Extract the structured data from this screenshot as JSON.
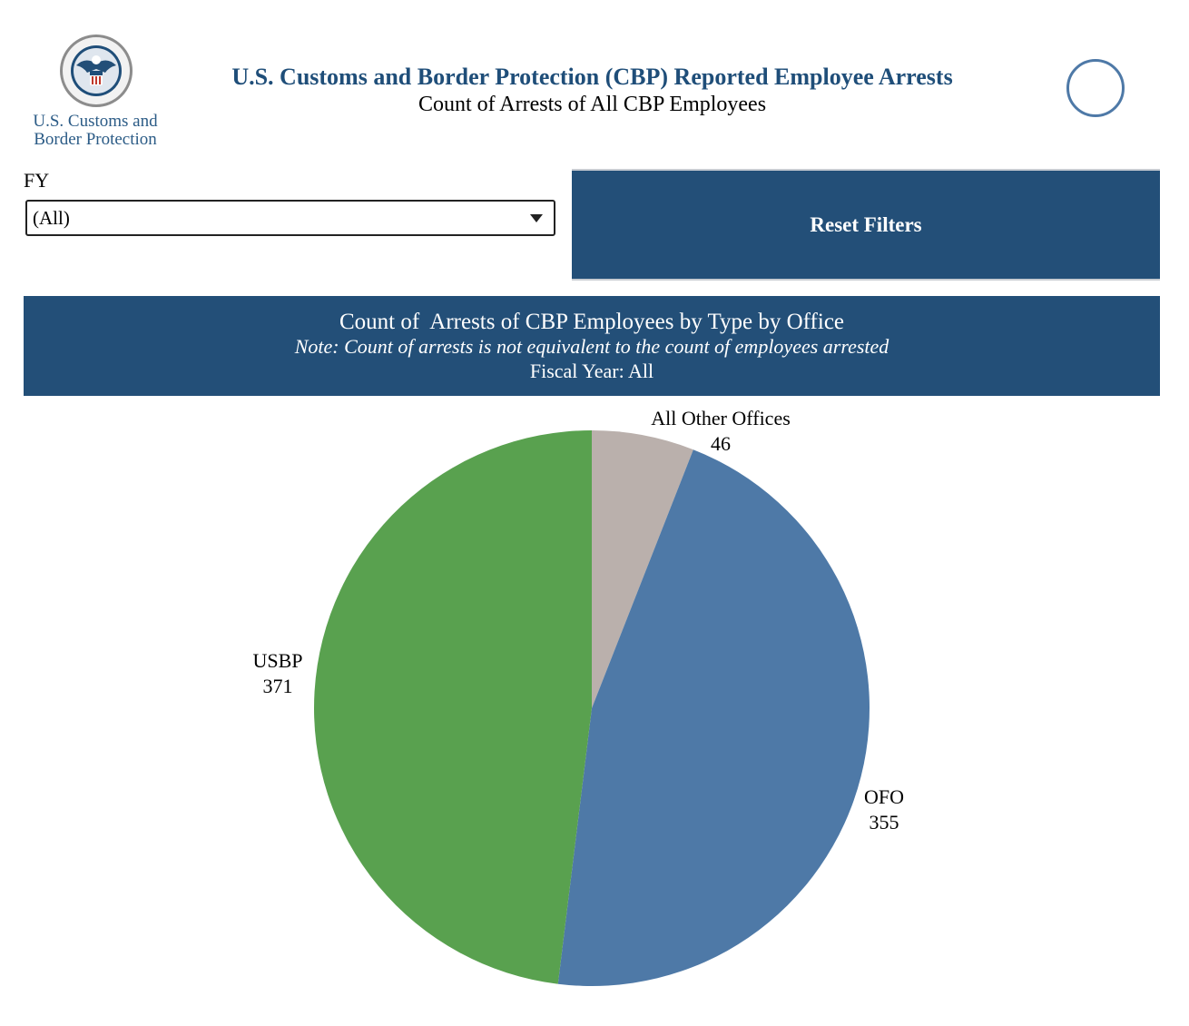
{
  "logo": {
    "agency_line1": "U.S. Customs and",
    "agency_line2": "Border Protection"
  },
  "header": {
    "title": "U.S. Customs and Border Protection (CBP) Reported Employee Arrests",
    "subtitle": "Count of Arrests of All CBP Employees"
  },
  "filters": {
    "fy_label": "FY",
    "fy_value": "(All)",
    "reset_label": "Reset Filters"
  },
  "banner": {
    "title": "Count of  Arrests of CBP Employees by Type by Office",
    "note": "Note: Count of arrests is not equivalent to the count of employees arrested",
    "fiscal_year": "Fiscal Year: All"
  },
  "colors": {
    "header_blue": "#1f4e79",
    "banner_bg": "#234f78",
    "ring": "#4e79a7"
  },
  "chart_data": {
    "type": "pie",
    "slices": [
      {
        "label": "All Other Offices",
        "value": 46,
        "color": "#bab0ac"
      },
      {
        "label": "OFO",
        "value": 355,
        "color": "#4e79a7"
      },
      {
        "label": "USBP",
        "value": 371,
        "color": "#59a14f"
      }
    ]
  }
}
